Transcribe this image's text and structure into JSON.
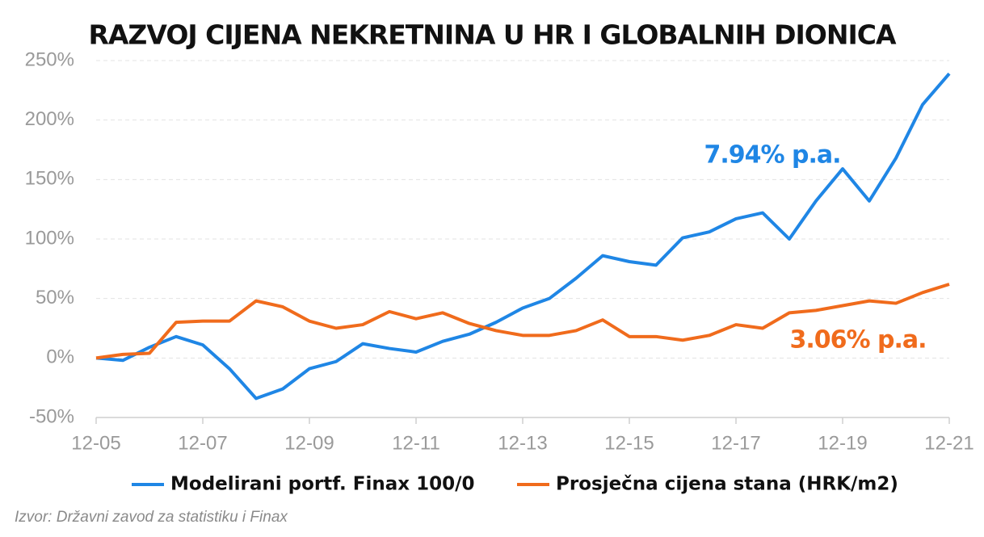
{
  "chart_data": {
    "type": "line",
    "title": "RAZVOJ CIJENA NEKRETNINA U HR I GLOBALNIH DIONICA",
    "categories": [
      "12-05",
      null,
      null,
      null,
      "12-07",
      null,
      null,
      null,
      "12-09",
      null,
      null,
      null,
      "12-11",
      null,
      null,
      null,
      "12-13",
      null,
      null,
      null,
      "12-15",
      null,
      null,
      null,
      "12-17",
      null,
      null,
      null,
      "12-19",
      null,
      null,
      null,
      "12-21"
    ],
    "series": [
      {
        "name": "Modelirani portf. Finax 100/0",
        "color": "#1f86e5",
        "values": [
          0,
          -2,
          9,
          18,
          11,
          -9,
          -34,
          -26,
          -9,
          -3,
          12,
          8,
          5,
          14,
          20,
          30,
          42,
          50,
          67,
          86,
          81,
          78,
          101,
          106,
          117,
          122,
          100,
          132,
          159,
          132,
          168,
          213,
          239
        ]
      },
      {
        "name": "Prosječna cijena stana (HRK/m2)",
        "color": "#f06b1c",
        "values": [
          0,
          3,
          4,
          30,
          31,
          31,
          48,
          43,
          31,
          25,
          28,
          39,
          33,
          38,
          29,
          23,
          19,
          19,
          23,
          32,
          18,
          18,
          15,
          19,
          28,
          25,
          38,
          40,
          44,
          48,
          46,
          55,
          62
        ]
      }
    ],
    "ylim": [
      -50,
      250
    ],
    "yticks": [
      {
        "value": -50,
        "label": "-50%"
      },
      {
        "value": 0,
        "label": "0%"
      },
      {
        "value": 50,
        "label": "50%"
      },
      {
        "value": 100,
        "label": "100%"
      },
      {
        "value": 150,
        "label": "150%"
      },
      {
        "value": 200,
        "label": "200%"
      },
      {
        "value": 250,
        "label": "250%"
      }
    ],
    "grid": true,
    "legend": "bottom",
    "annotations": [
      "7.94% p.a.",
      "3.06% p.a."
    ],
    "source": "Izvor: Državni zavod za statistiku i Finax"
  }
}
